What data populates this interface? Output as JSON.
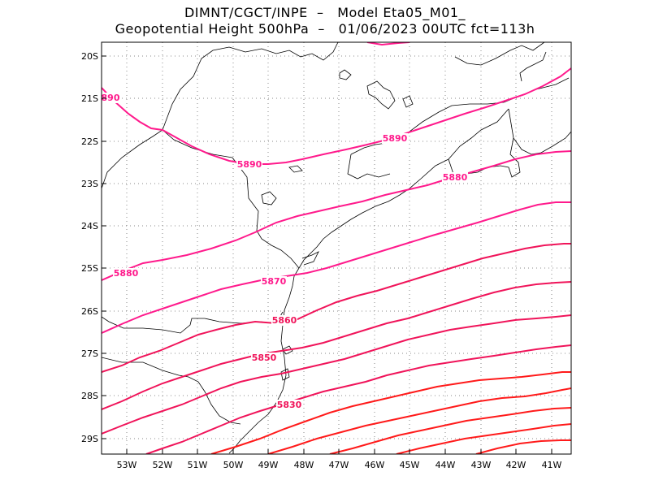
{
  "header": {
    "line1": "DIMNT/CGCT/INPE  –   Model Eta05_M01_",
    "line2": "Geopotential Height 500hPa  –   01/06/2023 00UTC fct=113h"
  },
  "map": {
    "lat_labels": [
      "20S",
      "21S",
      "22S",
      "23S",
      "24S",
      "25S",
      "26S",
      "27S",
      "28S",
      "29S"
    ],
    "lon_labels": [
      "53W",
      "52W",
      "51W",
      "50W",
      "49W",
      "48W",
      "47W",
      "46W",
      "45W",
      "44W",
      "43W",
      "42W",
      "41W"
    ],
    "contour_labels": [
      "890",
      "5890",
      "5890",
      "5880",
      "5880",
      "5870",
      "5860",
      "5850",
      "5830"
    ],
    "colors": {
      "high": "#ff1a8c",
      "mid": "#f0145a",
      "low": "#ff1a1a",
      "coast": "#000000",
      "grid": "#888888"
    }
  }
}
